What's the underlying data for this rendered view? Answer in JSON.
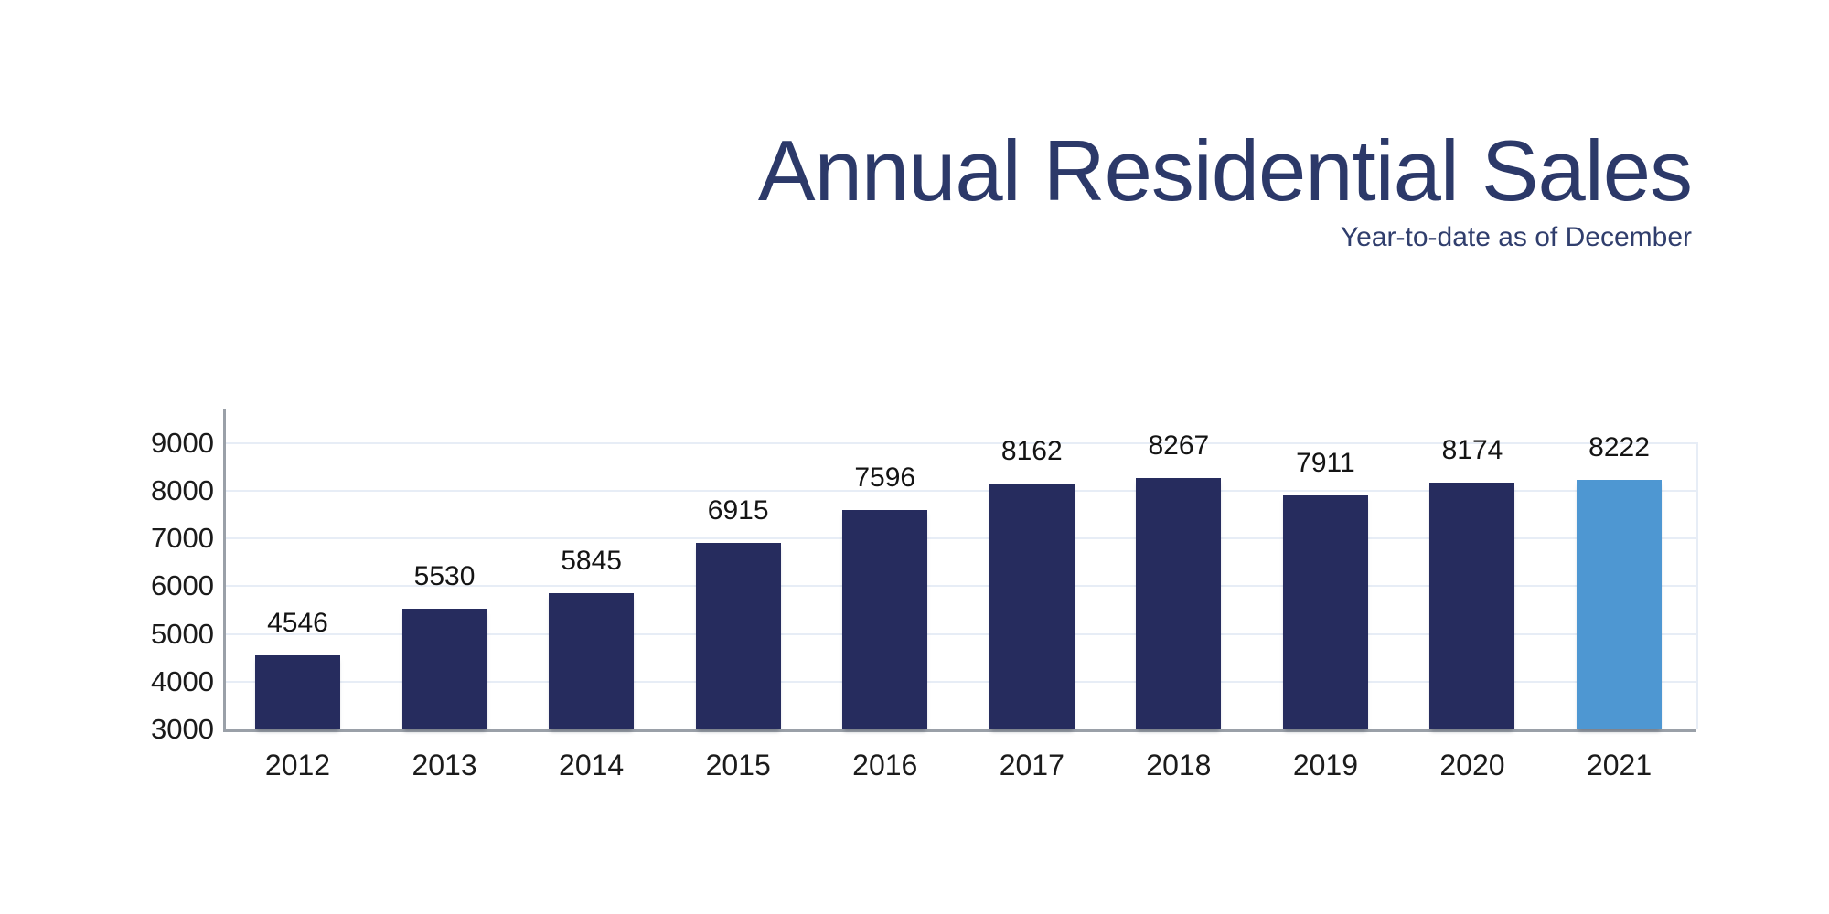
{
  "header": {
    "title": "Annual Residential Sales",
    "subtitle": "Year-to-date as of December"
  },
  "chart_data": {
    "type": "bar",
    "title": "Annual Residential Sales",
    "subtitle": "Year-to-date as of December",
    "categories": [
      "2012",
      "2013",
      "2014",
      "2015",
      "2016",
      "2017",
      "2018",
      "2019",
      "2020",
      "2021"
    ],
    "values": [
      4546,
      5530,
      5845,
      6915,
      7596,
      8162,
      8267,
      7911,
      8174,
      8222
    ],
    "data_labels": true,
    "highlight_index": 9,
    "y_ticks": [
      9000,
      8000,
      7000,
      6000,
      5000,
      4000,
      3000
    ],
    "ylim": [
      3000,
      9700
    ],
    "xlabel": "",
    "ylabel": "",
    "grid": "horizontal",
    "legend": "none",
    "colors": {
      "bar": "#262c5e",
      "bar_highlight": "#4e97d2",
      "gridline": "#e7edf6",
      "axis": "#9aa0a8",
      "tick_label": "#1b1b1b",
      "value_label": "#141414",
      "title": "#2c3969",
      "subtitle": "#303e6d",
      "background": "#ffffff"
    }
  }
}
